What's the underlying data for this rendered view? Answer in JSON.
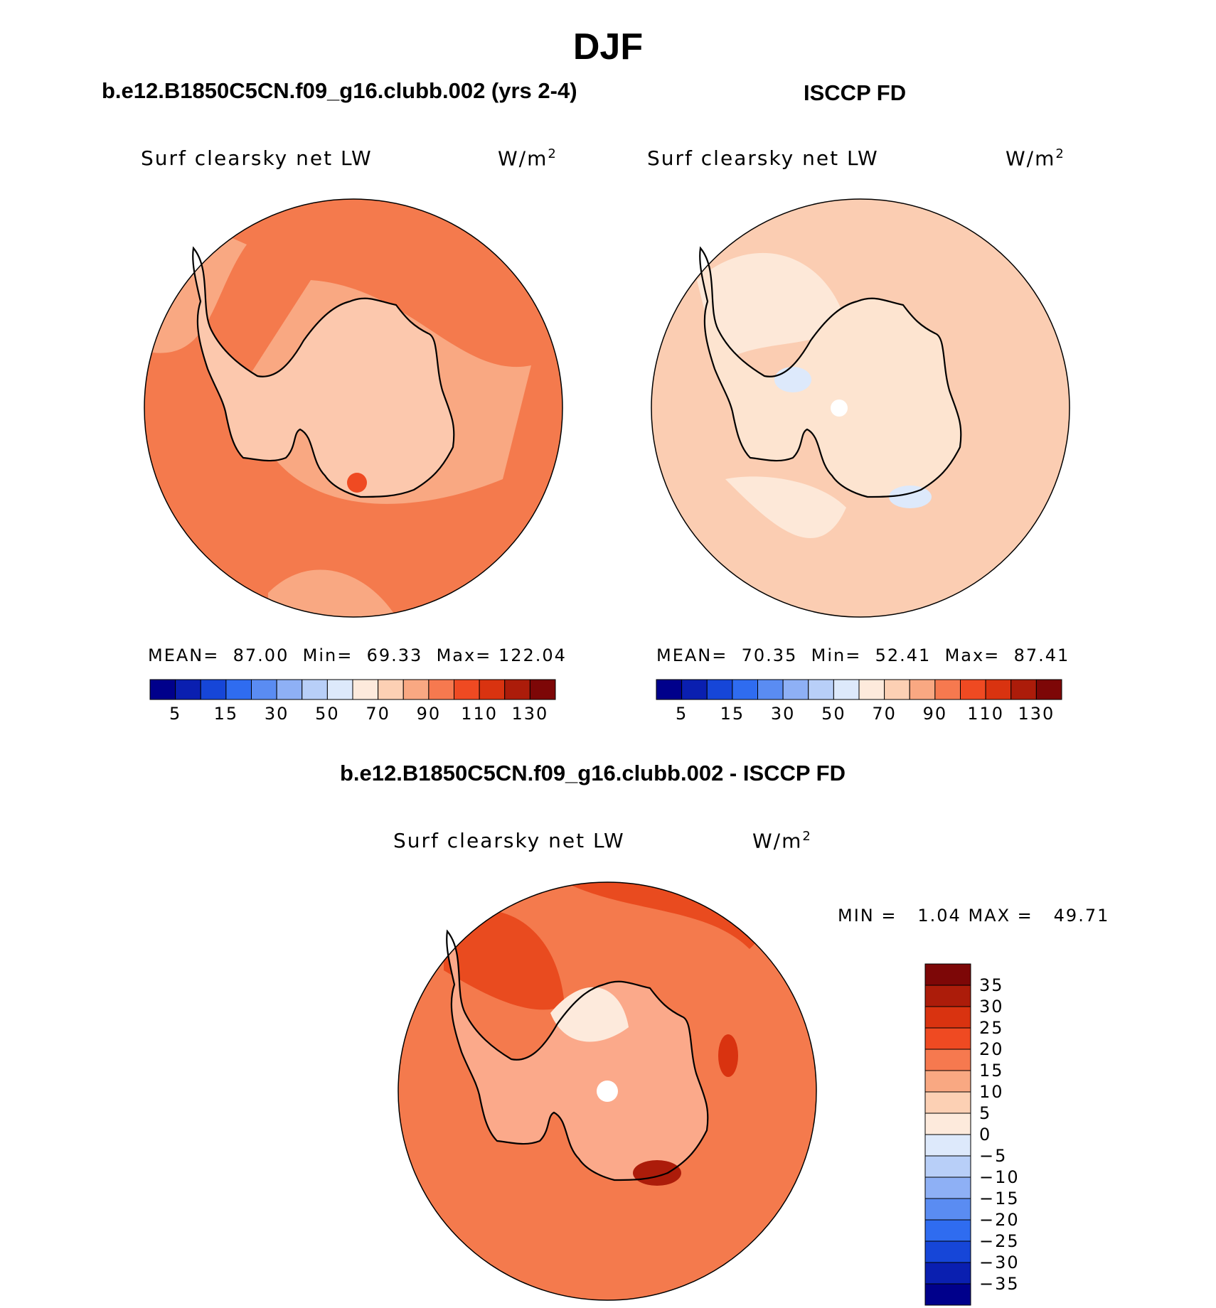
{
  "page": {
    "title": "DJF"
  },
  "panels": [
    {
      "id": "model",
      "subtitle": "b.e12.B1850C5CN.f09_g16.clubb.002 (yrs 2-4)",
      "variable": "Surf clearsky net LW",
      "units_base": "W/m",
      "units_exp": "2",
      "stats": {
        "mean_label": "MEAN=",
        "mean": "87.00",
        "min_label": "Min=",
        "min": "69.33",
        "max_label": "Max=",
        "max": "122.04"
      }
    },
    {
      "id": "obs",
      "subtitle": "ISCCP FD",
      "variable": "Surf clearsky net LW",
      "units_base": "W/m",
      "units_exp": "2",
      "stats": {
        "mean_label": "MEAN=",
        "mean": "70.35",
        "min_label": "Min=",
        "min": "52.41",
        "max_label": "Max=",
        "max": "87.41"
      }
    },
    {
      "id": "diff",
      "subtitle": "b.e12.B1850C5CN.f09_g16.clubb.002 - ISCCP FD",
      "variable": "Surf clearsky net LW",
      "units_base": "W/m",
      "units_exp": "2",
      "stats": {
        "min_label": "MIN =",
        "min": "1.04",
        "max_label": "MAX =",
        "max": "49.71"
      }
    }
  ],
  "chart_data": [
    {
      "type": "heatmap",
      "projection": "south-polar stereographic",
      "title": "Surf clearsky net LW",
      "units": "W/m2",
      "mean": 87.0,
      "min": 69.33,
      "max": 122.04,
      "colorbar_ticks": [
        "5",
        "15",
        "30",
        "50",
        "70",
        "90",
        "110",
        "130"
      ],
      "colorbar_levels": [
        5,
        10,
        15,
        20,
        30,
        40,
        50,
        60,
        70,
        80,
        90,
        100,
        110,
        120,
        130
      ]
    },
    {
      "type": "heatmap",
      "projection": "south-polar stereographic",
      "title": "Surf clearsky net LW",
      "units": "W/m2",
      "mean": 70.35,
      "min": 52.41,
      "max": 87.41,
      "colorbar_ticks": [
        "5",
        "15",
        "30",
        "50",
        "70",
        "90",
        "110",
        "130"
      ],
      "colorbar_levels": [
        5,
        10,
        15,
        20,
        30,
        40,
        50,
        60,
        70,
        80,
        90,
        100,
        110,
        120,
        130
      ]
    },
    {
      "type": "heatmap",
      "projection": "south-polar stereographic",
      "title": "Surf clearsky net LW",
      "units": "W/m2",
      "min": 1.04,
      "max": 49.71,
      "colorbar_ticks": [
        "35",
        "30",
        "25",
        "20",
        "15",
        "10",
        "5",
        "0",
        "−5",
        "−10",
        "−15",
        "−20",
        "−25",
        "−30",
        "−35"
      ]
    }
  ],
  "colors": {
    "scale": [
      "#00008b",
      "#0a1fb0",
      "#1646d8",
      "#2f6cf0",
      "#5a8cf2",
      "#8eb0f5",
      "#b8cff8",
      "#dde9fb",
      "#fdeadc",
      "#fcd0b4",
      "#f9a882",
      "#f6794f",
      "#ef4a22",
      "#d93310",
      "#ac1c0a",
      "#7d0707"
    ],
    "ocean_model": "#f47a4d",
    "ocean_model_light": "#f9a882",
    "land_model": "#fcc8ad",
    "ocean_obs": "#fbcdb2",
    "ocean_obs_light": "#fde8d8",
    "land_obs": "#fde4d0",
    "ocean_diff": "#f47a4d",
    "ocean_diff_dark": "#e94b1f",
    "land_diff": "#fba98a"
  }
}
